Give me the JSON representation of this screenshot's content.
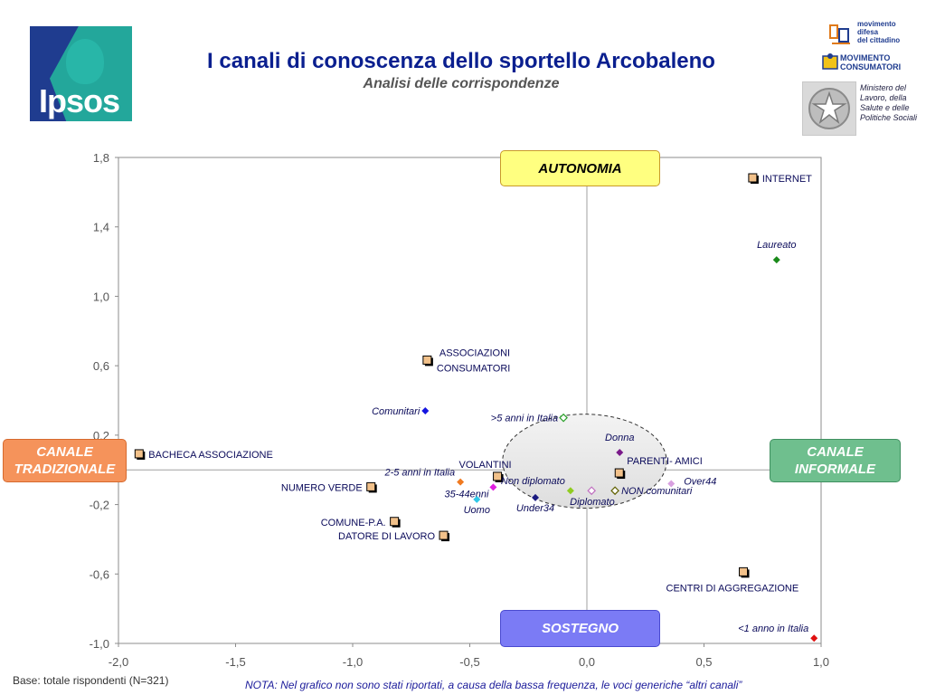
{
  "header": {
    "title": "I canali di conoscenza dello sportello Arcobaleno",
    "subtitle": "Analisi delle corrispondenze",
    "logo_text": "Ipsos",
    "partner1": [
      "movimento",
      "difesa",
      "del cittadino"
    ],
    "partner2": [
      "MOVIMENTO",
      "CONSUMATORI"
    ],
    "ministero": "Ministero del Lavoro, della Salute e delle Politiche Sociali"
  },
  "quadrants": {
    "top": "AUTONOMIA",
    "bottom": "SOSTEGNO",
    "left": "CANALE TRADIZIONALE",
    "right": "CANALE INFORMALE"
  },
  "footer": {
    "base": "Base: totale rispondenti (N=321)",
    "nota": "NOTA: Nel grafico non sono stati riportati, a causa della bassa frequenza, le voci generiche “altri canali”"
  },
  "colors": {
    "accent": "#0a1f8f",
    "channel_marker_fill": "#f2c18a",
    "channel_marker_border": "#000000",
    "label_text": "#0a0a5a",
    "ellipse_fill": "#e8e8e8"
  },
  "chart_data": {
    "type": "scatter",
    "xlim": [
      -2.0,
      1.0
    ],
    "ylim": [
      -1.0,
      1.8
    ],
    "xticks": [
      "-2,0",
      "-1,5",
      "-1,0",
      "-0,5",
      "0,0",
      "0,5",
      "1,0"
    ],
    "xtick_values": [
      -2.0,
      -1.5,
      -1.0,
      -0.5,
      0.0,
      0.5,
      1.0
    ],
    "yticks": [
      "1,8",
      "1,4",
      "1,0",
      "0,6",
      "0,2",
      "-0,2",
      "-0,6",
      "-1,0"
    ],
    "ytick_values": [
      1.8,
      1.4,
      1.0,
      0.6,
      0.2,
      -0.2,
      -0.6,
      -1.0
    ],
    "grid": false,
    "channels": [
      {
        "label": "INTERNET",
        "x": 0.71,
        "y": 1.68,
        "label_pos": "right"
      },
      {
        "label": "ASSOCIAZIONI CONSUMATORI",
        "x": -0.68,
        "y": 0.63,
        "label_pos": "right-multi"
      },
      {
        "label": "BACHECA ASSOCIAZIONE",
        "x": -1.91,
        "y": 0.09,
        "label_pos": "right"
      },
      {
        "label": "VOLANTINI",
        "x": -0.38,
        "y": -0.04,
        "label_pos": "above-left"
      },
      {
        "label": "PARENTI- AMICI",
        "x": 0.14,
        "y": -0.02,
        "label_pos": "above-right"
      },
      {
        "label": "NUMERO VERDE",
        "x": -0.92,
        "y": -0.1,
        "label_pos": "left"
      },
      {
        "label": "COMUNE-P.A.",
        "x": -0.82,
        "y": -0.3,
        "label_pos": "left"
      },
      {
        "label": "DATORE DI LAVORO",
        "x": -0.61,
        "y": -0.38,
        "label_pos": "left"
      },
      {
        "label": "CENTRI DI AGGREGAZIONE",
        "x": 0.67,
        "y": -0.59,
        "label_pos": "below-right"
      }
    ],
    "segments": [
      {
        "label": "Laureato",
        "x": 0.81,
        "y": 1.21,
        "color": "#1a8a1a",
        "shape": "filled",
        "label_pos": "above"
      },
      {
        "label": "Comunitari",
        "x": -0.69,
        "y": 0.34,
        "color": "#1515e0",
        "shape": "filled",
        "label_pos": "left"
      },
      {
        "label": ">5 anni in Italia",
        "x": -0.1,
        "y": 0.3,
        "color": "#2aa02a",
        "shape": "outline",
        "label_pos": "left"
      },
      {
        "label": "Donna",
        "x": 0.14,
        "y": 0.1,
        "color": "#7a1a8a",
        "shape": "filled",
        "label_pos": "above"
      },
      {
        "label": "2-5 anni in Italia",
        "x": -0.54,
        "y": -0.07,
        "color": "#f07a20",
        "shape": "filled",
        "label_pos": "above-left"
      },
      {
        "label": "35-44enni",
        "x": -0.4,
        "y": -0.1,
        "color": "#e020e0",
        "shape": "filled",
        "label_pos": "below-left"
      },
      {
        "label": "Uomo",
        "x": -0.47,
        "y": -0.17,
        "color": "#30c8e8",
        "shape": "filled",
        "label_pos": "below"
      },
      {
        "label": "Non diplomato",
        "x": -0.07,
        "y": -0.12,
        "color": "#90cc20",
        "shape": "filled",
        "label_pos": "above-left"
      },
      {
        "label": "Diplomato",
        "x": 0.02,
        "y": -0.12,
        "color": "#c070c0",
        "shape": "outline",
        "label_pos": "below-right"
      },
      {
        "label": "NON comunitari",
        "x": 0.12,
        "y": -0.12,
        "color": "#606000",
        "shape": "outline",
        "label_pos": "right"
      },
      {
        "label": "Under34",
        "x": -0.22,
        "y": -0.16,
        "color": "#1a1a80",
        "shape": "filled",
        "label_pos": "below"
      },
      {
        "label": "Over44",
        "x": 0.36,
        "y": -0.08,
        "color": "#d8a0e0",
        "shape": "filled",
        "label_pos": "above-right"
      },
      {
        "label": "<1 anno in Italia",
        "x": 0.97,
        "y": -0.97,
        "color": "#e01010",
        "shape": "filled",
        "label_pos": "above-left"
      }
    ]
  }
}
